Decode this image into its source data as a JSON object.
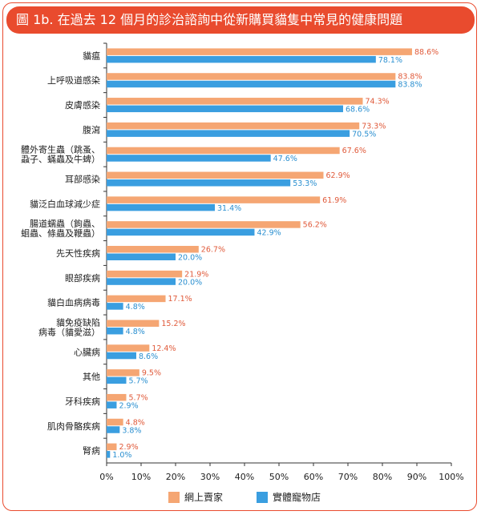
{
  "title": "圖 1b. 在過去 12 個月的診治諮詢中從新購買貓隻中常見的健康問題",
  "colors": {
    "series_a": "#f5a673",
    "series_b": "#3a9ee0",
    "accent": "#e94b2e"
  },
  "chart_data": {
    "type": "bar",
    "orientation": "horizontal",
    "categories": [
      [
        "貓瘟"
      ],
      [
        "上呼吸道感染"
      ],
      [
        "皮膚感染"
      ],
      [
        "腹瀉"
      ],
      [
        "體外寄生蟲（跳蚤、",
        "蝨子、蟎蟲及牛蜱）"
      ],
      [
        "耳部感染"
      ],
      [
        "貓泛白血球減少症"
      ],
      [
        "腸道蠕蟲（鉤蟲、",
        "蛔蟲、條蟲及鞭蟲）"
      ],
      [
        "先天性疾病"
      ],
      [
        "眼部疾病"
      ],
      [
        "貓白血病病毒"
      ],
      [
        "貓免疫缺陷",
        "病毒（貓愛滋）"
      ],
      [
        "心臟病"
      ],
      [
        "其他"
      ],
      [
        "牙科疾病"
      ],
      [
        "肌肉骨骼疾病"
      ],
      [
        "腎病"
      ]
    ],
    "series": [
      {
        "name": "網上賣家",
        "values": [
          88.6,
          83.8,
          74.3,
          73.3,
          67.6,
          62.9,
          61.9,
          56.2,
          26.7,
          21.9,
          17.1,
          15.2,
          12.4,
          9.5,
          5.7,
          4.8,
          2.9
        ]
      },
      {
        "name": "實體寵物店",
        "values": [
          78.1,
          83.8,
          68.6,
          70.5,
          47.6,
          53.3,
          31.4,
          42.9,
          20.0,
          20.0,
          4.8,
          4.8,
          8.6,
          5.7,
          2.9,
          3.8,
          1.0
        ]
      }
    ],
    "value_labels": [
      [
        "88.6%",
        "83.8%",
        "74.3%",
        "73.3%",
        "67.6%",
        "62.9%",
        "61.9%",
        "56.2%",
        "26.7%",
        "21.9%",
        "17.1%",
        "15.2%",
        "12.4%",
        "9.5%",
        "5.7%",
        "4.8%",
        "2.9%"
      ],
      [
        "78.1%",
        "83.8%",
        "68.6%",
        "70.5%",
        "47.6%",
        "53.3%",
        "31.4%",
        "42.9%",
        "20.0%",
        "20.0%",
        "4.8%",
        "4.8%",
        "8.6%",
        "5.7%",
        "2.9%",
        "3.8%",
        "1.0%"
      ]
    ],
    "xlim": [
      0,
      100
    ],
    "xticks": [
      "0%",
      "10%",
      "20%",
      "30%",
      "40%",
      "50%",
      "60%",
      "70%",
      "80%",
      "90%",
      "100%"
    ],
    "grid": false,
    "legend_position": "bottom"
  }
}
